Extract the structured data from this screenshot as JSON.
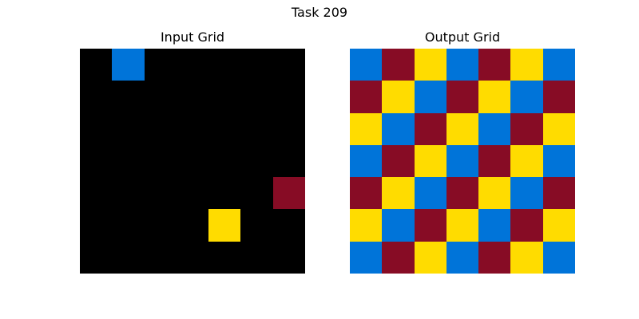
{
  "title": "Task 209",
  "palette": {
    "0": "#000000",
    "1": "#0074D9",
    "4": "#FFDC00",
    "9": "#870C25"
  },
  "input": {
    "title": "Input Grid",
    "grid": [
      [
        0,
        1,
        0,
        0,
        0,
        0,
        0
      ],
      [
        0,
        0,
        0,
        0,
        0,
        0,
        0
      ],
      [
        0,
        0,
        0,
        0,
        0,
        0,
        0
      ],
      [
        0,
        0,
        0,
        0,
        0,
        0,
        0
      ],
      [
        0,
        0,
        0,
        0,
        0,
        0,
        9
      ],
      [
        0,
        0,
        0,
        0,
        4,
        0,
        0
      ],
      [
        0,
        0,
        0,
        0,
        0,
        0,
        0
      ]
    ]
  },
  "output": {
    "title": "Output Grid",
    "grid": [
      [
        1,
        9,
        4,
        1,
        9,
        4,
        1
      ],
      [
        9,
        4,
        1,
        9,
        4,
        1,
        9
      ],
      [
        4,
        1,
        9,
        4,
        1,
        9,
        4
      ],
      [
        1,
        9,
        4,
        1,
        9,
        4,
        1
      ],
      [
        9,
        4,
        1,
        9,
        4,
        1,
        9
      ],
      [
        4,
        1,
        9,
        4,
        1,
        9,
        4
      ],
      [
        1,
        9,
        4,
        1,
        9,
        4,
        1
      ]
    ]
  }
}
